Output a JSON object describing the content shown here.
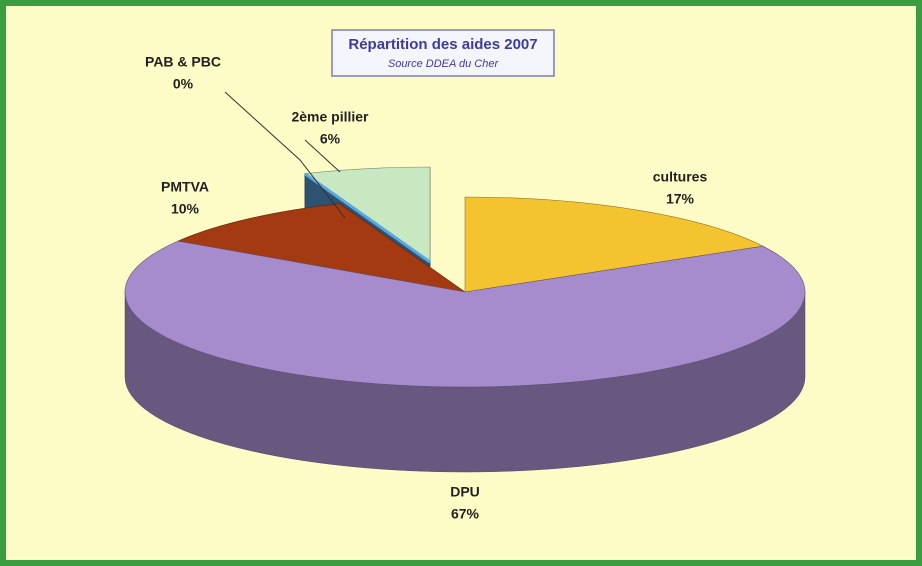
{
  "chart_data": {
    "type": "pie3d",
    "title": "Répartition des aides 2007",
    "subtitle": "Source DDEA du Cher",
    "categories": [
      "cultures",
      "DPU",
      "PMTVA",
      "PAB & PBC",
      "2ème pillier"
    ],
    "values": [
      17,
      67,
      10,
      0,
      6
    ],
    "value_labels": [
      "17%",
      "67%",
      "10%",
      "0%",
      "6%"
    ],
    "colors": [
      "#f3c330",
      "#a78ccd",
      "#a33a12",
      "#5aa6e0",
      "#c8e8c2"
    ]
  }
}
